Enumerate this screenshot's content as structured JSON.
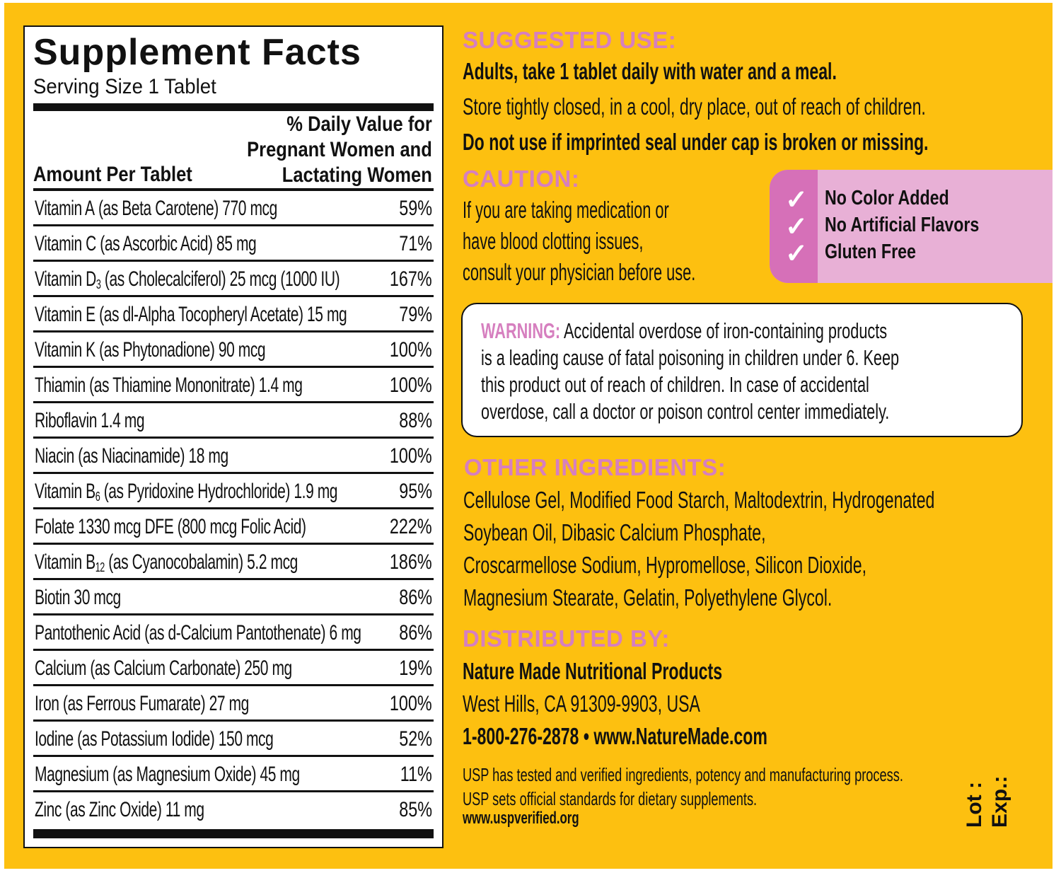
{
  "facts": {
    "title": "Supplement Facts",
    "serving": "Serving Size 1 Tablet",
    "dv_header": [
      "% Daily Value for",
      "Pregnant Women and",
      "Lactating Women"
    ],
    "amount_header": "Amount Per Tablet",
    "rows": [
      {
        "name": "Vitamin A",
        "sub": "",
        "desc": " (as Beta Carotene) 770 mcg",
        "dv": "59%"
      },
      {
        "name": "Vitamin C",
        "sub": "",
        "desc": " (as Ascorbic Acid) 85 mg",
        "dv": "71%"
      },
      {
        "name": "Vitamin D",
        "sub": "3",
        "desc": " (as Cholecalciferol) 25 mcg (1000 IU)",
        "dv": "167%"
      },
      {
        "name": "Vitamin E",
        "sub": "",
        "desc": " (as dl-Alpha Tocopheryl Acetate) 15 mg",
        "dv": "79%"
      },
      {
        "name": "Vitamin K",
        "sub": "",
        "desc": " (as Phytonadione) 90 mcg",
        "dv": "100%"
      },
      {
        "name": "Thiamin",
        "sub": "",
        "desc": " (as Thiamine Mononitrate) 1.4 mg",
        "dv": "100%"
      },
      {
        "name": "Riboflavin",
        "sub": "",
        "desc": " 1.4 mg",
        "dv": "88%"
      },
      {
        "name": "Niacin",
        "sub": "",
        "desc": " (as Niacinamide) 18 mg",
        "dv": "100%"
      },
      {
        "name": "Vitamin B",
        "sub": "6",
        "desc": " (as Pyridoxine Hydrochloride) 1.9 mg",
        "dv": "95%"
      },
      {
        "name": "Folate",
        "sub": "",
        "desc": " 1330 mcg DFE (800 mcg Folic Acid)",
        "dv": "222%"
      },
      {
        "name": "Vitamin B",
        "sub": "12",
        "desc": " (as Cyanocobalamin) 5.2 mcg",
        "dv": "186%"
      },
      {
        "name": "Biotin",
        "sub": "",
        "desc": " 30 mcg",
        "dv": "86%"
      },
      {
        "name": "Pantothenic Acid",
        "sub": "",
        "desc": " (as d-Calcium Pantothenate) 6 mg",
        "dv": "86%"
      },
      {
        "name": "Calcium",
        "sub": "",
        "desc": " (as Calcium Carbonate) 250 mg",
        "dv": "19%"
      },
      {
        "name": "Iron",
        "sub": "",
        "desc": " (as Ferrous Fumarate) 27 mg",
        "dv": "100%"
      },
      {
        "name": "Iodine",
        "sub": "",
        "desc": " (as Potassium Iodide) 150 mcg",
        "dv": "52%"
      },
      {
        "name": "Magnesium",
        "sub": "",
        "desc": " (as Magnesium Oxide) 45 mg",
        "dv": "11%"
      },
      {
        "name": "Zinc",
        "sub": "",
        "desc": " (as Zinc Oxide) 11 mg",
        "dv": "85%"
      }
    ]
  },
  "suggested": {
    "heading": "SUGGESTED USE:",
    "line1": "Adults, take 1 tablet daily with water and a meal.",
    "line2": "Store tightly closed, in a cool, dry place, out of reach of children.",
    "line3": "Do not use if imprinted seal under cap is broken or missing."
  },
  "caution": {
    "heading": "CAUTION:",
    "lines": [
      "If you are taking medication or",
      "have blood clotting issues,",
      "consult your physician before use."
    ]
  },
  "badges": [
    "No Color Added",
    "No Artificial Flavors",
    "Gluten Free"
  ],
  "warning": {
    "label": "WARNING:",
    "lines": [
      " Accidental overdose of iron-containing products",
      "is a leading cause of fatal poisoning in children under 6. Keep",
      "this product out of reach of children. In case of accidental",
      "overdose, call a doctor or poison control center immediately."
    ]
  },
  "other": {
    "heading": "OTHER INGREDIENTS:",
    "lines": [
      "Cellulose Gel, Modified Food Starch, Maltodextrin, Hydrogenated",
      "Soybean Oil, Dibasic Calcium Phosphate,",
      "Croscarmellose Sodium, Hypromellose, Silicon Dioxide,",
      "Magnesium Stearate, Gelatin, Polyethylene Glycol."
    ]
  },
  "distributed": {
    "heading": "DISTRIBUTED BY:",
    "company": "Nature Made Nutritional Products",
    "address": "West Hills, CA 91309-9903, USA",
    "contact": "1-800-276-2878 • www.NatureMade.com"
  },
  "usp": {
    "line1": "USP has tested and verified ingredients, potency and manufacturing process.",
    "line2": "USP sets official standards for dietary supplements.",
    "url": "www.uspverified.org"
  },
  "lot": {
    "lot": "Lot :",
    "exp": "Exp.:"
  },
  "colors": {
    "background": "#fdc010",
    "heading_pink": "#d67fbf",
    "badge_pink": "#e8b0d6"
  }
}
